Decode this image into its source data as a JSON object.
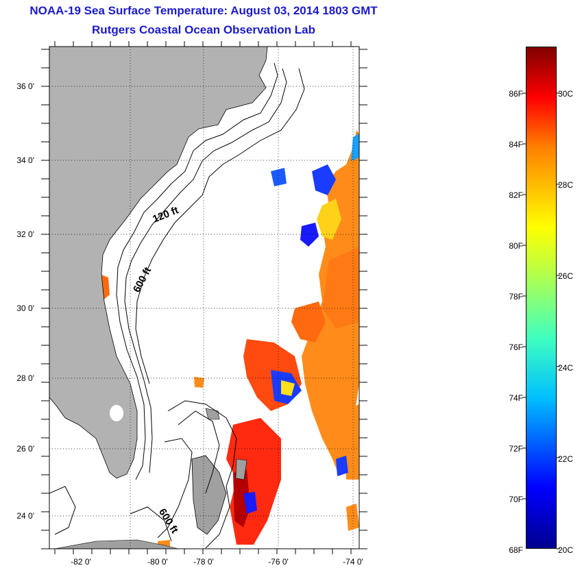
{
  "title": {
    "line1": "NOAA-19 Sea Surface Temperature:  August 03, 2014 1803 GMT",
    "line2": "Rutgers Coastal Ocean Observation Lab"
  },
  "axes": {
    "lat_labels": [
      "36 0'",
      "34 0'",
      "32 0'",
      "30 0'",
      "28 0'",
      "26 0'",
      "24 0'"
    ],
    "lon_labels": [
      "-82 0'",
      "-80 0'",
      "-78 0'",
      "-76 0'",
      "-74 0'"
    ],
    "lat_range": [
      23.0,
      37.0
    ],
    "lon_range": [
      -83.0,
      -73.0
    ],
    "grid": "dotted"
  },
  "contours": {
    "label_120": "120 ft",
    "label_600_north": "600 ft",
    "label_600_south": "600 ft"
  },
  "colorbar": {
    "fahrenheit_labels": [
      "86F",
      "84F",
      "82F",
      "80F",
      "78F",
      "76F",
      "74F",
      "72F",
      "70F",
      "68F"
    ],
    "celsius_labels": [
      "30C",
      "28C",
      "26C",
      "24C",
      "22C",
      "20C"
    ],
    "range_c": [
      20,
      31.2
    ]
  },
  "colors": {
    "land": "#b2b2b2",
    "title": "#1a1acc",
    "ocean_no_data": "#ffffff"
  }
}
